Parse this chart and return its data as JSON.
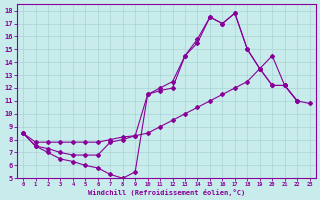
{
  "xlabel": "Windchill (Refroidissement éolien,°C)",
  "bg_color": "#c8ecec",
  "line_color": "#880099",
  "grid_color": "#aad4d4",
  "xlim": [
    -0.5,
    23.5
  ],
  "ylim": [
    5,
    18.5
  ],
  "xticks": [
    0,
    1,
    2,
    3,
    4,
    5,
    6,
    7,
    8,
    9,
    10,
    11,
    12,
    13,
    14,
    15,
    16,
    17,
    18,
    19,
    20,
    21,
    22,
    23
  ],
  "yticks": [
    5,
    6,
    7,
    8,
    9,
    10,
    11,
    12,
    13,
    14,
    15,
    16,
    17,
    18
  ],
  "line1_x": [
    0,
    1,
    2,
    3,
    4,
    5,
    6,
    7,
    8,
    9,
    10,
    11,
    12,
    13,
    14,
    15,
    16,
    17,
    18,
    19,
    20,
    21,
    22
  ],
  "line1_y": [
    8.5,
    7.5,
    7.0,
    6.5,
    6.3,
    6.0,
    5.8,
    5.3,
    5.0,
    5.5,
    11.5,
    11.8,
    12.0,
    14.5,
    15.5,
    17.5,
    17.0,
    17.8,
    15.0,
    13.5,
    12.2,
    12.2,
    11.0
  ],
  "line2_x": [
    0,
    1,
    2,
    3,
    4,
    5,
    6,
    7,
    8,
    9,
    10,
    11,
    12,
    13,
    14,
    15,
    16,
    17,
    18,
    19,
    20,
    21,
    22
  ],
  "line2_y": [
    8.5,
    7.5,
    7.3,
    7.0,
    6.8,
    6.8,
    6.8,
    7.8,
    8.0,
    8.3,
    11.5,
    12.0,
    12.5,
    14.5,
    15.8,
    17.5,
    17.0,
    17.8,
    15.0,
    13.5,
    12.2,
    12.2,
    11.0
  ],
  "line3_x": [
    0,
    1,
    2,
    3,
    4,
    5,
    6,
    7,
    8,
    9,
    10,
    11,
    12,
    13,
    14,
    15,
    16,
    17,
    18,
    19,
    20,
    21,
    22,
    23
  ],
  "line3_y": [
    8.5,
    7.8,
    7.8,
    7.8,
    7.8,
    7.8,
    7.8,
    8.0,
    8.2,
    8.3,
    8.5,
    9.0,
    9.5,
    10.0,
    10.5,
    11.0,
    11.5,
    12.0,
    12.5,
    13.5,
    14.5,
    12.2,
    11.0,
    10.8
  ]
}
